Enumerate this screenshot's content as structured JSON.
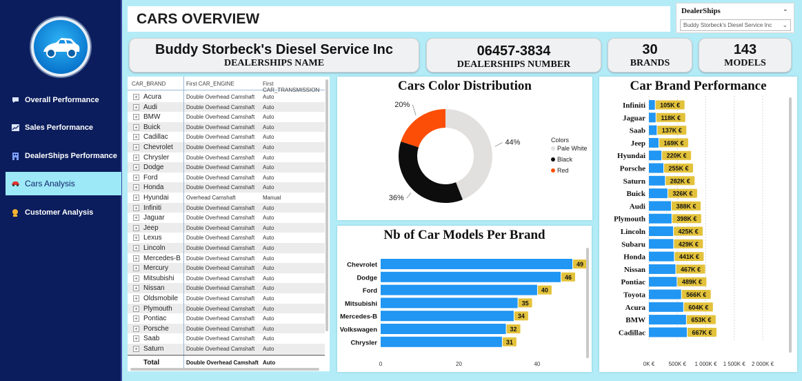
{
  "page": {
    "title": "CARS OVERVIEW"
  },
  "sidebar": {
    "logo_icon": "car-logo-icon",
    "items": [
      {
        "label": "Overall Performance",
        "icon": "speech-bubble-icon",
        "active": false
      },
      {
        "label": "Sales Performance",
        "icon": "chart-icon",
        "active": false
      },
      {
        "label": "DealerShips Performance",
        "icon": "building-icon",
        "active": false
      },
      {
        "label": "Cars Analysis",
        "icon": "car-icon",
        "active": true
      },
      {
        "label": "Customer Analysis",
        "icon": "person-icon",
        "active": false
      }
    ]
  },
  "slicer": {
    "title": "DealerShips",
    "value": "Buddy Storbeck's Diesel Service Inc"
  },
  "cards": {
    "dealership_name": {
      "value": "Buddy Storbeck's Diesel Service Inc",
      "label": "DEALERSHIPS NAME"
    },
    "dealership_number": {
      "value": "06457-3834",
      "label": "DEALERSHIPS NUMBER"
    },
    "brands": {
      "value": "30",
      "label": "BRANDS"
    },
    "models": {
      "value": "143",
      "label": "MODELS"
    }
  },
  "table": {
    "headers": [
      "CAR_BRAND",
      "First CAR_ENGINE",
      "First CAR_TRANSMISSION"
    ],
    "rows": [
      [
        "Acura",
        "Double Overhead Camshaft",
        "Auto"
      ],
      [
        "Audi",
        "Double Overhead Camshaft",
        "Auto"
      ],
      [
        "BMW",
        "Double Overhead Camshaft",
        "Auto"
      ],
      [
        "Buick",
        "Double Overhead Camshaft",
        "Auto"
      ],
      [
        "Cadillac",
        "Double Overhead Camshaft",
        "Auto"
      ],
      [
        "Chevrolet",
        "Double Overhead Camshaft",
        "Auto"
      ],
      [
        "Chrysler",
        "Double Overhead Camshaft",
        "Auto"
      ],
      [
        "Dodge",
        "Double Overhead Camshaft",
        "Auto"
      ],
      [
        "Ford",
        "Double Overhead Camshaft",
        "Auto"
      ],
      [
        "Honda",
        "Double Overhead Camshaft",
        "Auto"
      ],
      [
        "Hyundai",
        "Overhead Camshaft",
        "Manual"
      ],
      [
        "Infiniti",
        "Double Overhead Camshaft",
        "Auto"
      ],
      [
        "Jaguar",
        "Double Overhead Camshaft",
        "Auto"
      ],
      [
        "Jeep",
        "Double Overhead Camshaft",
        "Auto"
      ],
      [
        "Lexus",
        "Double Overhead Camshaft",
        "Auto"
      ],
      [
        "Lincoln",
        "Double Overhead Camshaft",
        "Auto"
      ],
      [
        "Mercedes-B",
        "Double Overhead Camshaft",
        "Auto"
      ],
      [
        "Mercury",
        "Double Overhead Camshaft",
        "Auto"
      ],
      [
        "Mitsubishi",
        "Double Overhead Camshaft",
        "Auto"
      ],
      [
        "Nissan",
        "Double Overhead Camshaft",
        "Auto"
      ],
      [
        "Oldsmobile",
        "Double Overhead Camshaft",
        "Auto"
      ],
      [
        "Plymouth",
        "Double Overhead Camshaft",
        "Auto"
      ],
      [
        "Pontiac",
        "Double Overhead Camshaft",
        "Auto"
      ],
      [
        "Porsche",
        "Double Overhead Camshaft",
        "Auto"
      ],
      [
        "Saab",
        "Double Overhead Camshaft",
        "Auto"
      ],
      [
        "Saturn",
        "Double Overhead Camshaft",
        "Auto"
      ]
    ],
    "total": [
      "Total",
      "Double Overhead Camshaft",
      "Auto"
    ]
  },
  "chart_data": [
    {
      "type": "pie",
      "title": "Cars Color Distribution",
      "legend_title": "Colors",
      "legend_position": "right",
      "labels": [
        "Pale White",
        "Black",
        "Red"
      ],
      "values": [
        44,
        36,
        20
      ],
      "value_labels": [
        "44%",
        "36%",
        "20%"
      ],
      "colors": [
        "#e2e0df",
        "#0d0d0d",
        "#fd4e08"
      ]
    },
    {
      "type": "bar",
      "orientation": "horizontal",
      "title": "Nb of Car Models Per Brand",
      "categories": [
        "Chevrolet",
        "Dodge",
        "Ford",
        "Mitsubishi",
        "Mercedes-B",
        "Volkswagen",
        "Chrysler"
      ],
      "values": [
        49,
        46,
        40,
        35,
        34,
        32,
        31
      ],
      "xlim": [
        0,
        49
      ],
      "xticks": [
        0,
        20,
        40
      ],
      "bar_color": "#2196f3",
      "label_color": "#e3c23b"
    },
    {
      "type": "bar",
      "orientation": "horizontal",
      "title": "Car Brand Performance",
      "categories": [
        "Infiniti",
        "Jaguar",
        "Saab",
        "Jeep",
        "Hyundai",
        "Porsche",
        "Saturn",
        "Buick",
        "Audi",
        "Plymouth",
        "Lincoln",
        "Subaru",
        "Honda",
        "Nissan",
        "Pontiac",
        "Toyota",
        "Acura",
        "BMW",
        "Cadillac"
      ],
      "values": [
        105,
        118,
        137,
        169,
        220,
        255,
        282,
        326,
        388,
        398,
        425,
        429,
        441,
        467,
        489,
        566,
        604,
        653,
        667
      ],
      "value_labels": [
        "105K €",
        "118K €",
        "137K €",
        "169K €",
        "220K €",
        "255K €",
        "282K €",
        "326K €",
        "388K €",
        "398K €",
        "425K €",
        "429K €",
        "441K €",
        "467K €",
        "489K €",
        "566K €",
        "604K €",
        "653K €",
        "667K €"
      ],
      "unit": "K €",
      "xlim": [
        0,
        2000
      ],
      "xticks": [
        0,
        500,
        1000,
        1500,
        2000
      ],
      "xtick_labels": [
        "0K €",
        "500K €",
        "1 000K €",
        "1 500K €",
        "2 000K €"
      ],
      "grid": true,
      "bar_color": "#2196f3",
      "label_color": "#e3c23b"
    }
  ]
}
